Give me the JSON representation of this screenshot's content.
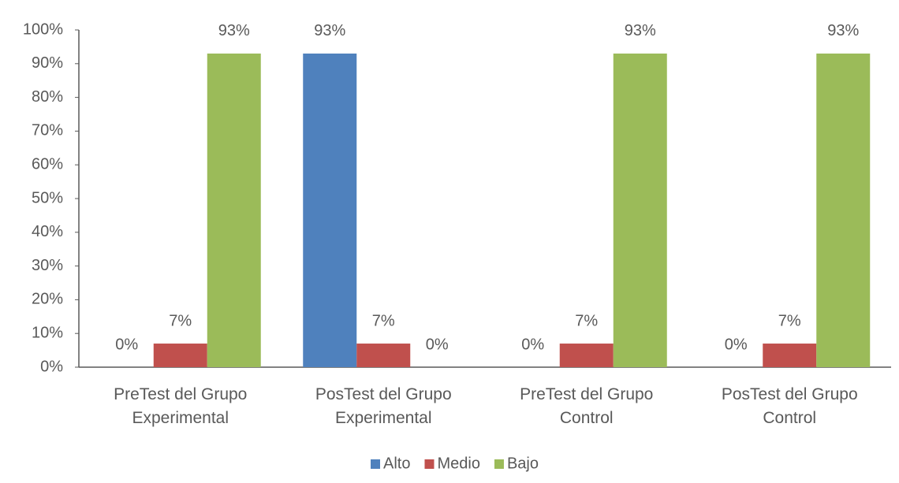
{
  "chart_data": {
    "type": "bar",
    "categories": [
      "PreTest del Grupo Experimental",
      "PosTest del Grupo Experimental",
      "PreTest del Grupo Control",
      "PosTest del Grupo Control"
    ],
    "series": [
      {
        "name": "Alto",
        "color": "#4f81bd",
        "values": [
          0,
          93,
          0,
          0
        ],
        "value_labels": [
          "0%",
          "93%",
          "0%",
          "0%"
        ]
      },
      {
        "name": "Medio",
        "color": "#c0504d",
        "values": [
          7,
          7,
          7,
          7
        ],
        "value_labels": [
          "7%",
          "7%",
          "7%",
          "7%"
        ]
      },
      {
        "name": "Bajo",
        "color": "#9bbb59",
        "values": [
          93,
          0,
          93,
          93
        ],
        "value_labels": [
          "93%",
          "0%",
          "93%",
          "93%"
        ]
      }
    ],
    "ylim": [
      0,
      100
    ],
    "yticks": [
      {
        "value": 0,
        "label": "0%"
      },
      {
        "value": 10,
        "label": "10%"
      },
      {
        "value": 20,
        "label": "20%"
      },
      {
        "value": 30,
        "label": "30%"
      },
      {
        "value": 40,
        "label": "40%"
      },
      {
        "value": 50,
        "label": "50%"
      },
      {
        "value": 60,
        "label": "60%"
      },
      {
        "value": 70,
        "label": "70%"
      },
      {
        "value": 80,
        "label": "80%"
      },
      {
        "value": 90,
        "label": "90%"
      },
      {
        "value": 100,
        "label": "100%"
      }
    ],
    "grid": false,
    "legend": "bottom"
  }
}
